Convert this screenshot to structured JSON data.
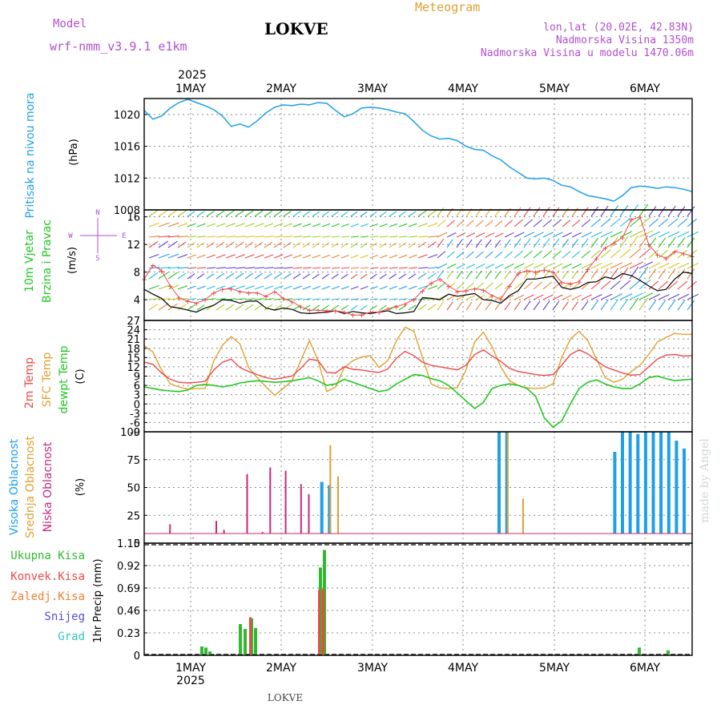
{
  "header": {
    "model_label": "Model",
    "model_name": "wrf-nmm_v3.9.1 e1km",
    "station": "LOKVE",
    "title": "Meteogram",
    "coords": "lon,lat (20.02E, 42.83N)",
    "altitude": "Nadmorska Visina 1350m",
    "model_altitude": "Nadmorska Visina u modelu 1470.06m",
    "footer_station": "LOKVE",
    "watermark": "made by Angel"
  },
  "colors": {
    "pressure": "#1ea0e8",
    "temp2m": "#f04848",
    "sfc": "#e0a030",
    "dewpt": "#20c820",
    "cloud_high": "#1ea0e8",
    "cloud_mid": "#e0a030",
    "cloud_low": "#c8287a",
    "rain_total": "#30b830",
    "rain_conv": "#f04848",
    "rain_frz": "#f08030",
    "snow": "#5050d8",
    "hail": "#30c8c0",
    "wind_gust": "#f04848",
    "wind_speed": "#000000"
  },
  "chart_data": [
    {
      "type": "line",
      "id": "pressure",
      "ylabel_title": "Pritisak na nivou mora",
      "ylabel_unit": "(hPa)",
      "ylim": [
        1008,
        1022
      ],
      "yticks": [
        "1008",
        "1012",
        "1016",
        "1020"
      ],
      "xticks_top": [
        "1MAY",
        "2MAY",
        "3MAY",
        "4MAY",
        "5MAY",
        "6MAY"
      ],
      "year_top": "2025",
      "series": [
        {
          "values": [
            1020.5,
            1019.4,
            1019.8,
            1020.8,
            1021.5,
            1021.9,
            1021.5,
            1021.1,
            1020.6,
            1019.8,
            1018.5,
            1018.8,
            1018.4,
            1019.2,
            1020.2,
            1020.9,
            1021.2,
            1021.1,
            1021.3,
            1021.2,
            1021.5,
            1021.4,
            1020.5,
            1019.7,
            1020.1,
            1020.8,
            1020.9,
            1020.8,
            1020.6,
            1020.3,
            1020.1,
            1019.1,
            1018.0,
            1017.3,
            1016.9,
            1017.0,
            1016.7,
            1016.0,
            1015.6,
            1015.5,
            1014.8,
            1014.3,
            1013.4,
            1012.7,
            1012.0,
            1011.9,
            1012.0,
            1011.7,
            1011.1,
            1010.9,
            1010.3,
            1009.8,
            1009.6,
            1009.4,
            1009.1,
            1009.8,
            1010.8,
            1011.0,
            1010.9,
            1010.7,
            1010.9,
            1010.8,
            1010.6,
            1010.3
          ]
        }
      ]
    },
    {
      "type": "line",
      "id": "wind",
      "ylabel_title": "10m Vjetar",
      "ylabel_title2": "Brzina i Pravac",
      "ylabel_unit": "(m/s)",
      "compass_n": "N",
      "compass_s": "S",
      "compass_w": "W",
      "compass_e": "E",
      "ylim": [
        1,
        17
      ],
      "yticks": [
        "4",
        "8",
        "12",
        "16"
      ],
      "series": [
        {
          "values": [
            5.5,
            4.8,
            4.2,
            3.0,
            2.8,
            2.5,
            2.2,
            2.8,
            3.2,
            4.0,
            3.9,
            3.5,
            3.8,
            3.8,
            2.8,
            2.5,
            2.8,
            2.6,
            2.1,
            2.0,
            2.1,
            2.2,
            2.4,
            2.0,
            2.3,
            2.1,
            2.0,
            2.2,
            2.4,
            2.0,
            2.1,
            2.3,
            4.3,
            4.2,
            4.0,
            4.8,
            4.5,
            4.7,
            4.9,
            4.0,
            3.9,
            3.5,
            4.6,
            5.3,
            7.0,
            7.0,
            7.2,
            7.4,
            5.8,
            5.5,
            5.8,
            6.5,
            6.6,
            7.3,
            7.0,
            7.8,
            7.5,
            6.8,
            6.0,
            5.3,
            5.5,
            7.0,
            8.0,
            7.8
          ]
        },
        {
          "values": [
            7.0,
            9.0,
            8.2,
            6.0,
            4.3,
            3.8,
            3.5,
            4.0,
            5.0,
            5.5,
            5.6,
            5.2,
            5.0,
            5.0,
            4.5,
            5.2,
            4.2,
            3.7,
            3.0,
            2.5,
            2.5,
            2.4,
            2.4,
            2.2,
            1.8,
            1.8,
            2.2,
            2.2,
            2.7,
            3.0,
            3.4,
            4.0,
            5.3,
            6.4,
            7.0,
            6.0,
            5.2,
            5.3,
            5.6,
            5.4,
            4.6,
            4.1,
            6.0,
            7.8,
            8.2,
            8.0,
            8.3,
            8.0,
            6.5,
            6.3,
            6.6,
            8.4,
            10.0,
            11.5,
            12.2,
            13.0,
            15.6,
            16.0,
            12.0,
            10.5,
            10.0,
            11.0,
            10.7,
            10.3
          ]
        }
      ]
    },
    {
      "type": "line",
      "id": "temperature",
      "ylabel_title": "2m Temp",
      "ylabel_title2": "SFC Temp",
      "ylabel_title3": "dewpt Temp",
      "ylabel_unit": "(C)",
      "ylim": [
        -9,
        27
      ],
      "yticks": [
        "-9",
        "-6",
        "-3",
        "0",
        "3",
        "6",
        "9",
        "12",
        "15",
        "18",
        "21",
        "24",
        "27"
      ],
      "series": [
        {
          "values": [
            13.5,
            12.8,
            10.0,
            8.0,
            7.0,
            6.8,
            7.0,
            7.3,
            11.0,
            13.5,
            14.5,
            11.8,
            10.5,
            9.5,
            8.5,
            8.0,
            8.5,
            9.0,
            11.5,
            14.5,
            14.0,
            10.2,
            10.0,
            12.0,
            11.2,
            11.0,
            10.5,
            10.2,
            11.3,
            14.8,
            17.0,
            15.6,
            13.5,
            12.5,
            12.0,
            11.5,
            11.0,
            12.5,
            16.0,
            17.5,
            15.5,
            13.8,
            11.5,
            10.5,
            10.0,
            9.5,
            9.2,
            9.5,
            12.5,
            16.0,
            17.5,
            16.2,
            14.0,
            12.0,
            11.0,
            10.0,
            9.3,
            9.5,
            12.0,
            14.5,
            15.8,
            16.0,
            15.5,
            15.6
          ]
        },
        {
          "values": [
            18.8,
            16.8,
            11.0,
            6.5,
            5.5,
            4.8,
            5.0,
            5.0,
            14.0,
            19.0,
            21.8,
            19.5,
            11.8,
            8.5,
            5.5,
            2.8,
            5.0,
            7.5,
            14.0,
            20.5,
            14.0,
            4.0,
            5.5,
            11.8,
            14.0,
            15.2,
            15.6,
            11.8,
            14.0,
            20.5,
            24.8,
            23.5,
            15.0,
            6.5,
            5.2,
            5.0,
            5.3,
            11.0,
            20.0,
            23.2,
            18.5,
            12.0,
            7.5,
            6.0,
            5.2,
            5.0,
            5.2,
            6.5,
            15.0,
            21.0,
            23.5,
            20.5,
            14.5,
            8.5,
            7.0,
            8.0,
            10.5,
            12.5,
            16.0,
            20.0,
            21.5,
            22.8,
            22.5,
            22.5
          ]
        },
        {
          "values": [
            5.5,
            5.0,
            4.5,
            4.2,
            4.0,
            4.5,
            6.0,
            6.3,
            6.0,
            5.5,
            6.0,
            6.8,
            7.2,
            7.5,
            7.3,
            7.0,
            7.2,
            7.5,
            8.0,
            8.5,
            7.5,
            6.0,
            6.5,
            8.0,
            7.0,
            6.0,
            5.0,
            4.0,
            4.5,
            6.5,
            8.0,
            9.5,
            9.2,
            8.2,
            7.5,
            6.0,
            3.5,
            1.0,
            -1.5,
            0.5,
            5.0,
            6.0,
            6.5,
            6.0,
            5.0,
            2.5,
            -4.5,
            -7.5,
            -5.5,
            0.0,
            5.0,
            7.0,
            7.8,
            6.5,
            5.5,
            5.0,
            5.0,
            6.5,
            8.5,
            9.0,
            8.2,
            7.5,
            7.8,
            8.0
          ]
        }
      ]
    },
    {
      "type": "bar",
      "id": "clouds",
      "ylabel_title": "Visoka Oblacnost",
      "ylabel_title2": "Srednja Oblacnost",
      "ylabel_title3": "Niska Oblacnost",
      "ylabel_unit": "(%)",
      "ylim": [
        0,
        100
      ],
      "yticks": [
        "0",
        "25",
        "50",
        "75",
        "100"
      ],
      "series": [
        {
          "name": "high",
          "values": [
            0,
            0,
            0,
            0,
            0,
            0,
            0,
            0,
            0,
            0,
            0,
            0,
            0,
            0,
            0,
            0,
            0,
            0,
            0,
            0,
            0,
            0,
            55,
            52,
            0,
            0,
            0,
            0,
            0,
            0,
            0,
            0,
            0,
            0,
            0,
            0,
            0,
            0,
            0,
            0,
            0,
            0,
            0,
            0,
            0,
            100,
            100,
            0,
            0,
            0,
            0,
            0,
            0,
            0,
            0,
            0,
            0,
            0,
            0,
            0,
            82,
            100,
            100,
            98,
            100,
            100,
            100,
            100,
            92,
            85
          ]
        },
        {
          "name": "mid",
          "values": [
            0,
            0,
            0,
            0,
            0,
            0,
            0,
            0,
            0,
            0,
            0,
            0,
            0,
            0,
            0,
            0,
            0,
            0,
            0,
            0,
            0,
            0,
            0,
            88,
            60,
            0,
            0,
            0,
            0,
            0,
            0,
            0,
            0,
            0,
            0,
            0,
            0,
            0,
            0,
            0,
            0,
            0,
            0,
            0,
            0,
            0,
            100,
            0,
            40,
            0,
            0,
            0,
            0,
            0,
            0,
            0,
            0,
            0,
            0,
            0,
            0,
            0,
            0,
            0,
            0,
            0,
            0,
            0,
            0,
            0
          ]
        },
        {
          "name": "low",
          "values": [
            0,
            0,
            17,
            0,
            0,
            5,
            0,
            0,
            20,
            12,
            0,
            0,
            62,
            0,
            10,
            68,
            0,
            65,
            0,
            53,
            44,
            0,
            0,
            0,
            0,
            0,
            0,
            0,
            0,
            0,
            0,
            0,
            0,
            0,
            0,
            0,
            0,
            0,
            0,
            0,
            0,
            0,
            0,
            0,
            0,
            0,
            0,
            0,
            0,
            0,
            0,
            0,
            0,
            0,
            0,
            0,
            0,
            0,
            0,
            0,
            0,
            0,
            0,
            0,
            0,
            0,
            0,
            0,
            0,
            0
          ]
        }
      ]
    },
    {
      "type": "bar",
      "id": "precip",
      "ylabel_unit": "1hr Precip (mm)",
      "ylim": [
        0,
        1.15
      ],
      "yticks": [
        "0",
        "0.23",
        "0.46",
        "0.69",
        "0.92",
        "1.15"
      ],
      "xticks_bottom": [
        "1MAY",
        "2MAY",
        "3MAY",
        "4MAY",
        "5MAY",
        "6MAY"
      ],
      "year_bottom": "2025",
      "legend": [
        "Ukupna Kisa",
        "Konvek.Kisa",
        "Zaledj.Kisa",
        "Snijeg",
        "Grad"
      ],
      "series": [
        {
          "name": "Ukupna Kisa",
          "values": [
            0.09,
            0.08,
            0.04,
            0.32,
            0.27,
            0.38,
            0.28,
            0.9,
            1.08,
            0.08,
            0.05
          ]
        },
        {
          "name": "Konvek.Kisa",
          "values": [
            0.0,
            0.0,
            0.0,
            0.0,
            0.0,
            0.39,
            0.0,
            0.67,
            0.68,
            0.0,
            0.0
          ]
        }
      ]
    }
  ]
}
